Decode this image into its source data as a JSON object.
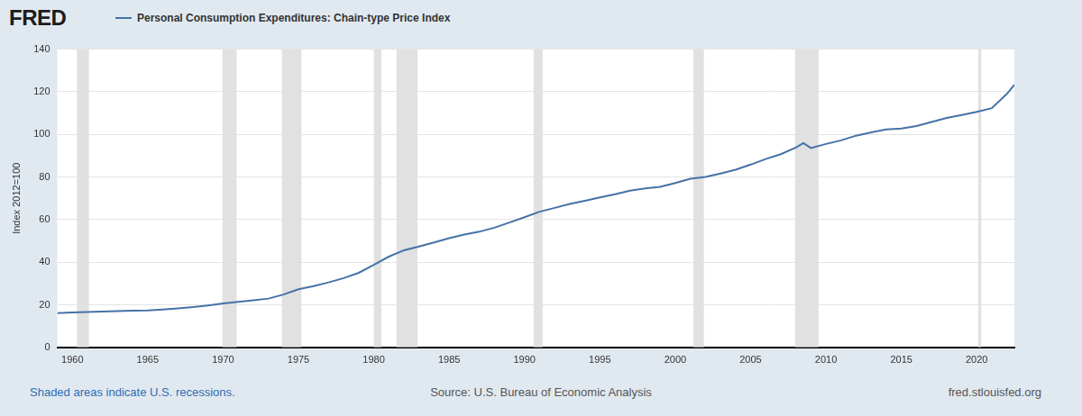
{
  "chart_data": {
    "type": "line",
    "logo": "FRED",
    "legend": "top-left",
    "ylabel": "Index 2012=100",
    "note": "Shaded areas indicate U.S. recessions.",
    "source": "Source: U.S. Bureau of Economic Analysis",
    "site": "fred.stlouisfed.org",
    "x": [
      1959,
      1960,
      1961,
      1962,
      1963,
      1964,
      1965,
      1966,
      1967,
      1968,
      1969,
      1970,
      1971,
      1972,
      1973,
      1974,
      1975,
      1976,
      1977,
      1978,
      1979,
      1980,
      1981,
      1982,
      1983,
      1984,
      1985,
      1986,
      1987,
      1988,
      1989,
      1990,
      1991,
      1992,
      1993,
      1994,
      1995,
      1996,
      1997,
      1998,
      1999,
      2000,
      2001,
      2002,
      2003,
      2004,
      2005,
      2006,
      2007,
      2008,
      2008.5,
      2009,
      2010,
      2011,
      2012,
      2013,
      2014,
      2015,
      2016,
      2017,
      2018,
      2019,
      2020,
      2021,
      2022,
      2022.5
    ],
    "series": [
      {
        "name": "Personal Consumption Expenditures: Chain-type Price Index",
        "color": "#4572a7",
        "marker": "none",
        "values": [
          16.1,
          16.4,
          16.6,
          16.8,
          17.0,
          17.2,
          17.4,
          17.8,
          18.3,
          18.9,
          19.7,
          20.6,
          21.4,
          22.1,
          22.9,
          24.8,
          27.3,
          28.8,
          30.5,
          32.5,
          35.0,
          38.8,
          42.6,
          45.6,
          47.4,
          49.3,
          51.3,
          53.0,
          54.3,
          56.2,
          58.6,
          61.1,
          63.7,
          65.5,
          67.3,
          68.8,
          70.4,
          71.9,
          73.6,
          74.6,
          75.4,
          77.2,
          79.2,
          80.0,
          81.6,
          83.4,
          85.8,
          88.4,
          90.7,
          93.8,
          95.9,
          93.6,
          95.5,
          97.2,
          99.4,
          100.9,
          102.3,
          102.7,
          103.9,
          105.8,
          107.7,
          109.1,
          110.6,
          112.3,
          119.0,
          123.3
        ]
      }
    ],
    "recessions": [
      [
        1960.3,
        1961.1
      ],
      [
        1969.95,
        1970.9
      ],
      [
        1973.9,
        1975.2
      ],
      [
        1980.0,
        1980.5
      ],
      [
        1981.5,
        1982.9
      ],
      [
        1990.6,
        1991.2
      ],
      [
        2001.2,
        2001.9
      ],
      [
        2007.95,
        2009.5
      ],
      [
        2020.1,
        2020.3
      ]
    ],
    "xlim": [
      1959,
      2022.5
    ],
    "xticks": [
      1960,
      1965,
      1970,
      1975,
      1980,
      1985,
      1990,
      1995,
      2000,
      2005,
      2010,
      2015,
      2020
    ],
    "ylim": [
      0,
      140
    ],
    "yticks": [
      0,
      20,
      40,
      60,
      80,
      100,
      120,
      140
    ],
    "grid": "y"
  }
}
